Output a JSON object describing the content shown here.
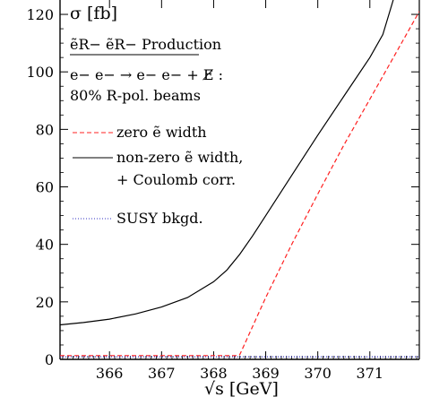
{
  "chart_data": {
    "type": "line",
    "title": "",
    "xlabel": "√s [GeV]",
    "ylabel": "σ [fb]",
    "xlim": [
      365.05,
      371.95
    ],
    "ylim": [
      0,
      125
    ],
    "x_ticks": [
      366,
      367,
      368,
      369,
      370,
      371
    ],
    "y_ticks": [
      0,
      20,
      40,
      60,
      80,
      100,
      120
    ],
    "grid": false,
    "legend_placement": "top-left",
    "annotations": {
      "process": "ẽR− ẽR− Production",
      "reaction": "e− e− → e− e− + E̸ :",
      "beams": "80% R-pol. beams"
    },
    "series": [
      {
        "name": "zero ẽ width",
        "style": "dashed",
        "color": "#ff2020",
        "x": [
          365.05,
          368.45,
          368.5,
          368.6,
          368.8,
          369.0,
          369.5,
          370.0,
          370.5,
          371.0,
          371.5,
          371.95
        ],
        "y": [
          1.3,
          1.3,
          1.6,
          5.5,
          13.5,
          21.5,
          40.0,
          57.5,
          74.5,
          90.5,
          106.5,
          121.0
        ]
      },
      {
        "name": "non-zero ẽ width, + Coulomb corr.",
        "style": "solid",
        "color": "#000000",
        "x": [
          365.05,
          365.5,
          366.0,
          366.5,
          367.0,
          367.5,
          368.0,
          368.25,
          368.5,
          368.75,
          369.0,
          369.5,
          370.0,
          370.5,
          371.0,
          371.25,
          371.45
        ],
        "y": [
          12.0,
          12.8,
          14.0,
          15.8,
          18.2,
          21.5,
          27.0,
          31.0,
          36.5,
          43.0,
          50.0,
          64.0,
          78.0,
          91.5,
          105.0,
          113.0,
          125.0
        ]
      },
      {
        "name": "SUSY bkgd.",
        "style": "dotted",
        "color": "#3030c0",
        "x": [
          365.05,
          371.95
        ],
        "y": [
          0.9,
          0.9
        ]
      }
    ]
  }
}
